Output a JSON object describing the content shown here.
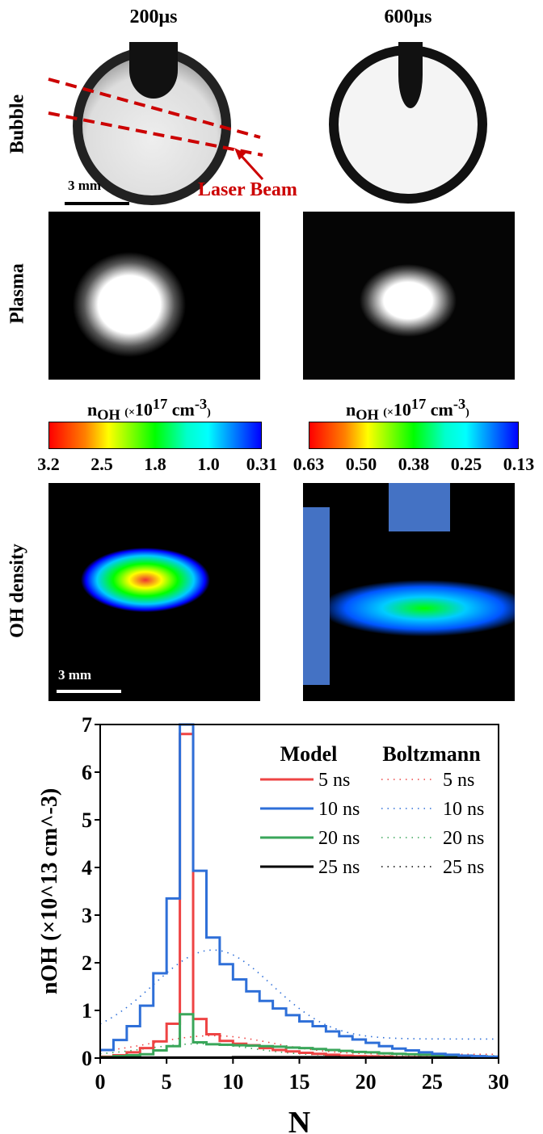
{
  "columns": [
    "200μs",
    "600μs"
  ],
  "rows": [
    "Bubble",
    "Plasma",
    "OH density"
  ],
  "annotations": {
    "laser_beam": "Laser Beam",
    "scale_bar": "3 mm"
  },
  "colorbars": [
    {
      "title": "n",
      "sub": "OH",
      "unit_pre": "(",
      "times": "×",
      "base": "10",
      "exp": "17",
      "unit": " cm",
      "uexp": "-3",
      "close": ")",
      "ticks": [
        "3.2",
        "2.5",
        "1.8",
        "1.0",
        "0.31"
      ]
    },
    {
      "title": "n",
      "sub": "OH",
      "unit_pre": "(",
      "times": "×",
      "base": "10",
      "exp": "17",
      "unit": " cm",
      "uexp": "-3",
      "close": ")",
      "ticks": [
        "0.63",
        "0.50",
        "0.38",
        "0.25",
        "0.13"
      ]
    }
  ],
  "chart_data": {
    "type": "line",
    "xlabel": "N",
    "ylabel": "nOH (×10^13 cm^-3)",
    "xlim": [
      0,
      30
    ],
    "ylim": [
      0,
      7
    ],
    "xticks": [
      "0",
      "5",
      "10",
      "15",
      "20",
      "25",
      "30"
    ],
    "yticks": [
      "0",
      "1",
      "2",
      "3",
      "4",
      "5",
      "6",
      "7"
    ],
    "legend": {
      "placement": "top-right",
      "model_header": "Model",
      "boltz_header": "Boltzmann",
      "labels": [
        "5   ns",
        "10 ns",
        "20 ns",
        "25 ns"
      ]
    },
    "colors": [
      "#ee4444",
      "#2e6fd8",
      "#3aa65a",
      "#000000"
    ],
    "model_step_series": [
      {
        "name": "5 ns",
        "values": [
          0.03,
          0.06,
          0.12,
          0.21,
          0.35,
          0.72,
          6.8,
          0.82,
          0.5,
          0.36,
          0.3,
          0.27,
          0.21,
          0.17,
          0.14,
          0.11,
          0.09,
          0.07,
          0.05,
          0.04,
          0.035,
          0.03,
          0.02,
          0.02,
          0.015,
          0.01,
          0.01,
          0.01,
          0.01,
          0.01
        ]
      },
      {
        "name": "10 ns",
        "values": [
          0.17,
          0.38,
          0.67,
          1.1,
          1.78,
          3.35,
          7.0,
          3.93,
          2.53,
          1.97,
          1.65,
          1.4,
          1.2,
          1.04,
          0.9,
          0.77,
          0.67,
          0.56,
          0.46,
          0.39,
          0.32,
          0.25,
          0.2,
          0.16,
          0.12,
          0.09,
          0.07,
          0.05,
          0.04,
          0.03
        ]
      },
      {
        "name": "20 ns",
        "values": [
          0.02,
          0.04,
          0.06,
          0.08,
          0.16,
          0.25,
          0.92,
          0.33,
          0.29,
          0.28,
          0.27,
          0.26,
          0.25,
          0.24,
          0.22,
          0.21,
          0.19,
          0.17,
          0.15,
          0.13,
          0.12,
          0.1,
          0.09,
          0.08,
          0.07,
          0.06,
          0.05,
          0.04,
          0.03,
          0.02
        ]
      },
      {
        "name": "25 ns",
        "values": [
          0.01,
          0.01,
          0.01,
          0.01,
          0.01,
          0.01,
          0.01,
          0.01,
          0.01,
          0.01,
          0.02,
          0.02,
          0.02,
          0.02,
          0.02,
          0.02,
          0.02,
          0.02,
          0.01,
          0.01,
          0.01,
          0.01,
          0.01,
          0.01,
          0.01,
          0.01,
          0.01,
          0.01,
          0.01,
          0.01
        ]
      }
    ],
    "boltzmann_series": [
      {
        "name": "5 ns",
        "peak": 0.47,
        "peak_N": 8.5,
        "start": 0.08
      },
      {
        "name": "10 ns",
        "peak": 2.27,
        "peak_N": 8.5,
        "start": 0.4
      },
      {
        "name": "20 ns",
        "peak": 0.3,
        "peak_N": 7.5,
        "start": 0.05
      },
      {
        "name": "25 ns",
        "peak": 0.015,
        "peak_N": 8,
        "start": 0.005
      }
    ]
  }
}
